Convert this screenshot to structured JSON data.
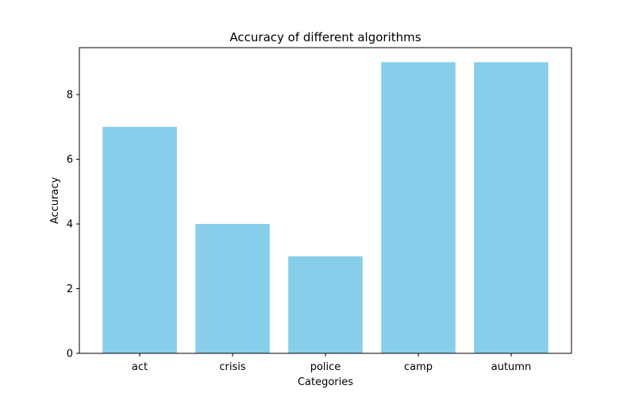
{
  "chart_data": {
    "type": "bar",
    "title": "Accuracy of different algorithms",
    "xlabel": "Categories",
    "ylabel": "Accuracy",
    "categories": [
      "act",
      "crisis",
      "police",
      "camp",
      "autumn"
    ],
    "values": [
      7,
      4,
      3,
      9,
      9
    ],
    "ylim": [
      0,
      9.45
    ],
    "yticks": [
      0,
      2,
      4,
      6,
      8
    ],
    "bar_color": "#87CEEB",
    "grid": false,
    "legend": "none"
  }
}
